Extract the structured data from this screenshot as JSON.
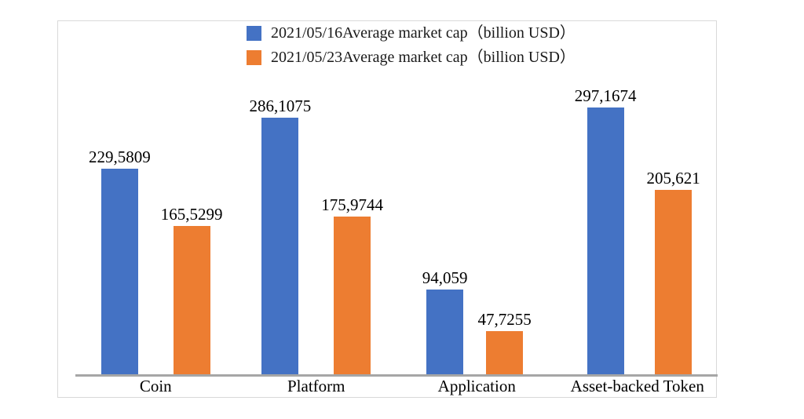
{
  "chart_data": {
    "type": "bar",
    "title": "",
    "categories": [
      "Coin",
      "Platform",
      "Application",
      "Asset-backed Token"
    ],
    "series": [
      {
        "name": "2021/05/16Average market cap（billion USD）",
        "color": "#4472C4",
        "values": [
          229.5809,
          286.1075,
          94.059,
          297.1674
        ],
        "labels": [
          "229,5809",
          "286,1075",
          "94,059",
          "297,1674"
        ]
      },
      {
        "name": "2021/05/23Average market cap（billion USD）",
        "color": "#ED7D31",
        "values": [
          165.5299,
          175.9744,
          47.7255,
          205.621
        ],
        "labels": [
          "165,5299",
          "175,9744",
          "47,7255",
          "205,621"
        ]
      }
    ],
    "ylim": [
      0,
      300
    ],
    "grid": false,
    "legend_position": "top-center",
    "value_labels_shown": true,
    "decimal_separator": "comma"
  },
  "colors": {
    "series1": "#4472C4",
    "series2": "#ED7D31",
    "axis_line": "#A6A6A6",
    "frame_border": "#D9D9D9",
    "background": "#FFFFFF"
  }
}
